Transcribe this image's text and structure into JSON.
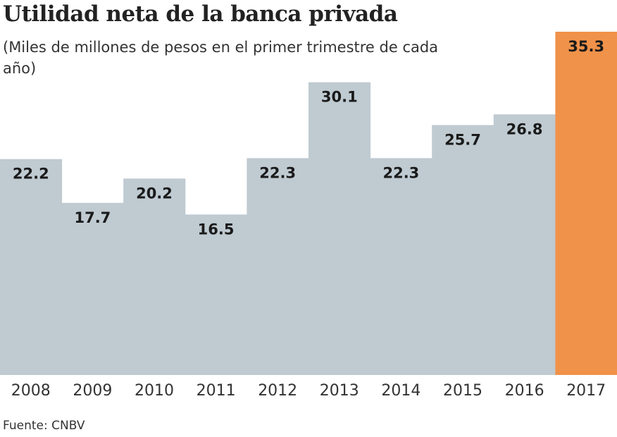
{
  "chart_data": {
    "type": "bar",
    "title": "Utilidad neta de la banca privada",
    "subtitle": "(Miles de millones de pesos en el primer trimestre de cada año)",
    "categories": [
      "2008",
      "2009",
      "2010",
      "2011",
      "2012",
      "2013",
      "2014",
      "2015",
      "2016",
      "2017"
    ],
    "values": [
      22.2,
      17.7,
      20.2,
      16.5,
      22.3,
      30.1,
      22.3,
      25.7,
      26.8,
      35.3
    ],
    "value_labels": [
      "22.2",
      "17.7",
      "20.2",
      "16.5",
      "22.3",
      "30.1",
      "22.3",
      "25.7",
      "26.8",
      "35.3"
    ],
    "ylim": [
      0,
      35.3
    ],
    "grid": false,
    "colors": {
      "default": "#bfcad1",
      "highlight": "#f0924a"
    },
    "highlight_category": "2017"
  },
  "source": "Fuente: CNBV"
}
